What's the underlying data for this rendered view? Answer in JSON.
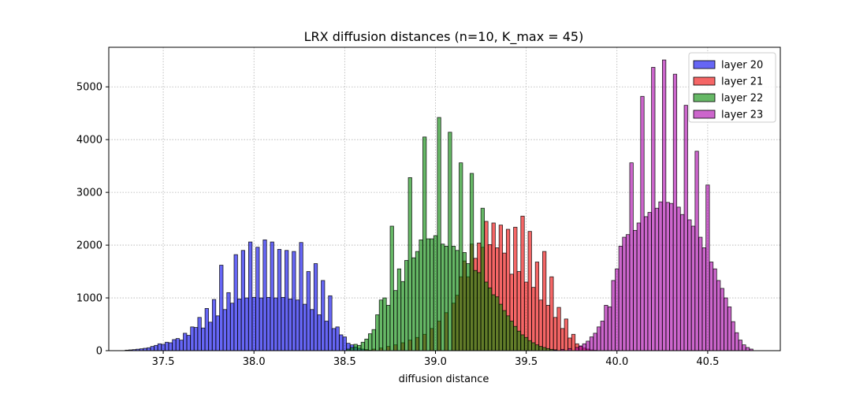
{
  "chart_data": {
    "type": "histogram",
    "title": "LRX diffusion distances (n=10, K_max = 45)",
    "xlabel": "diffusion distance",
    "ylabel": "",
    "xlim": [
      37.2,
      40.9
    ],
    "ylim": [
      0,
      5750
    ],
    "xticks": [
      37.5,
      38.0,
      38.5,
      39.0,
      39.5,
      40.0,
      40.5
    ],
    "xtick_labels": [
      "37.5",
      "38.0",
      "38.5",
      "39.0",
      "39.5",
      "40.0",
      "40.5"
    ],
    "yticks": [
      0,
      1000,
      2000,
      3000,
      4000,
      5000
    ],
    "ytick_labels": [
      "0",
      "1000",
      "2000",
      "3000",
      "4000",
      "5000"
    ],
    "grid": true,
    "legend_position": "top-right",
    "bin_width": 0.0192,
    "series": [
      {
        "name": "layer 20",
        "label": "layer 20",
        "color": "#0000ee",
        "alpha": 0.6,
        "bins": [
          [
            37.3,
            10
          ],
          [
            37.32,
            15
          ],
          [
            37.34,
            20
          ],
          [
            37.36,
            28
          ],
          [
            37.38,
            35
          ],
          [
            37.4,
            45
          ],
          [
            37.42,
            55
          ],
          [
            37.44,
            80
          ],
          [
            37.46,
            100
          ],
          [
            37.48,
            130
          ],
          [
            37.5,
            120
          ],
          [
            37.52,
            160
          ],
          [
            37.54,
            150
          ],
          [
            37.56,
            210
          ],
          [
            37.58,
            230
          ],
          [
            37.6,
            200
          ],
          [
            37.62,
            330
          ],
          [
            37.64,
            290
          ],
          [
            37.66,
            450
          ],
          [
            37.68,
            440
          ],
          [
            37.7,
            630
          ],
          [
            37.72,
            430
          ],
          [
            37.74,
            800
          ],
          [
            37.76,
            540
          ],
          [
            37.78,
            970
          ],
          [
            37.8,
            660
          ],
          [
            37.82,
            1620
          ],
          [
            37.84,
            780
          ],
          [
            37.86,
            1100
          ],
          [
            37.88,
            900
          ],
          [
            37.9,
            1820
          ],
          [
            37.92,
            980
          ],
          [
            37.94,
            1900
          ],
          [
            37.96,
            1000
          ],
          [
            37.98,
            2060
          ],
          [
            38.0,
            1010
          ],
          [
            38.02,
            1960
          ],
          [
            38.04,
            1000
          ],
          [
            38.06,
            2100
          ],
          [
            38.08,
            1010
          ],
          [
            38.1,
            2060
          ],
          [
            38.12,
            1000
          ],
          [
            38.14,
            1920
          ],
          [
            38.16,
            1010
          ],
          [
            38.18,
            1900
          ],
          [
            38.2,
            980
          ],
          [
            38.22,
            1880
          ],
          [
            38.24,
            960
          ],
          [
            38.26,
            2050
          ],
          [
            38.28,
            880
          ],
          [
            38.3,
            1500
          ],
          [
            38.32,
            780
          ],
          [
            38.34,
            1650
          ],
          [
            38.36,
            680
          ],
          [
            38.38,
            1330
          ],
          [
            38.4,
            560
          ],
          [
            38.42,
            1040
          ],
          [
            38.44,
            420
          ],
          [
            38.46,
            450
          ],
          [
            38.48,
            300
          ],
          [
            38.5,
            260
          ],
          [
            38.52,
            140
          ],
          [
            38.54,
            110
          ],
          [
            38.56,
            70
          ],
          [
            38.58,
            45
          ],
          [
            38.6,
            30
          ],
          [
            38.62,
            15
          ],
          [
            38.64,
            8
          ]
        ]
      },
      {
        "name": "layer 21",
        "label": "layer 21",
        "color": "#ee0000",
        "alpha": 0.6,
        "bins": [
          [
            38.62,
            20
          ],
          [
            38.66,
            30
          ],
          [
            38.7,
            50
          ],
          [
            38.74,
            80
          ],
          [
            38.78,
            110
          ],
          [
            38.82,
            150
          ],
          [
            38.86,
            200
          ],
          [
            38.9,
            250
          ],
          [
            38.94,
            310
          ],
          [
            38.98,
            420
          ],
          [
            39.02,
            560
          ],
          [
            39.06,
            720
          ],
          [
            39.1,
            900
          ],
          [
            39.12,
            1050
          ],
          [
            39.14,
            1400
          ],
          [
            39.16,
            1700
          ],
          [
            39.18,
            1400
          ],
          [
            39.2,
            2020
          ],
          [
            39.22,
            1750
          ],
          [
            39.24,
            2040
          ],
          [
            39.26,
            1960
          ],
          [
            39.28,
            2450
          ],
          [
            39.3,
            2010
          ],
          [
            39.32,
            2420
          ],
          [
            39.34,
            1950
          ],
          [
            39.36,
            2380
          ],
          [
            39.38,
            1850
          ],
          [
            39.4,
            2300
          ],
          [
            39.42,
            1450
          ],
          [
            39.44,
            2340
          ],
          [
            39.46,
            1500
          ],
          [
            39.48,
            2550
          ],
          [
            39.5,
            1300
          ],
          [
            39.52,
            2260
          ],
          [
            39.54,
            1200
          ],
          [
            39.56,
            1680
          ],
          [
            39.58,
            960
          ],
          [
            39.6,
            1880
          ],
          [
            39.62,
            860
          ],
          [
            39.64,
            1400
          ],
          [
            39.66,
            630
          ],
          [
            39.68,
            820
          ],
          [
            39.7,
            420
          ],
          [
            39.72,
            600
          ],
          [
            39.74,
            240
          ],
          [
            39.76,
            310
          ],
          [
            39.78,
            130
          ],
          [
            39.8,
            80
          ],
          [
            39.82,
            50
          ],
          [
            39.84,
            30
          ],
          [
            39.86,
            15
          ],
          [
            39.88,
            8
          ]
        ]
      },
      {
        "name": "layer 22",
        "label": "layer 22",
        "color": "#008800",
        "alpha": 0.6,
        "bins": [
          [
            38.52,
            30
          ],
          [
            38.54,
            60
          ],
          [
            38.56,
            120
          ],
          [
            38.58,
            100
          ],
          [
            38.6,
            160
          ],
          [
            38.62,
            220
          ],
          [
            38.64,
            320
          ],
          [
            38.66,
            400
          ],
          [
            38.68,
            680
          ],
          [
            38.7,
            960
          ],
          [
            38.72,
            1000
          ],
          [
            38.74,
            860
          ],
          [
            38.76,
            2360
          ],
          [
            38.78,
            1140
          ],
          [
            38.8,
            1550
          ],
          [
            38.82,
            1310
          ],
          [
            38.84,
            1710
          ],
          [
            38.86,
            3280
          ],
          [
            38.88,
            1760
          ],
          [
            38.9,
            1880
          ],
          [
            38.92,
            2100
          ],
          [
            38.94,
            4050
          ],
          [
            38.96,
            2120
          ],
          [
            38.98,
            2120
          ],
          [
            39.0,
            2180
          ],
          [
            39.02,
            4420
          ],
          [
            39.04,
            2020
          ],
          [
            39.06,
            1980
          ],
          [
            39.08,
            4140
          ],
          [
            39.1,
            1980
          ],
          [
            39.12,
            1900
          ],
          [
            39.14,
            3560
          ],
          [
            39.16,
            1860
          ],
          [
            39.18,
            1650
          ],
          [
            39.2,
            3360
          ],
          [
            39.22,
            1520
          ],
          [
            39.24,
            1480
          ],
          [
            39.26,
            2700
          ],
          [
            39.28,
            1300
          ],
          [
            39.3,
            1190
          ],
          [
            39.32,
            1060
          ],
          [
            39.34,
            1020
          ],
          [
            39.36,
            880
          ],
          [
            39.38,
            760
          ],
          [
            39.4,
            660
          ],
          [
            39.42,
            560
          ],
          [
            39.44,
            460
          ],
          [
            39.46,
            370
          ],
          [
            39.48,
            300
          ],
          [
            39.5,
            250
          ],
          [
            39.52,
            190
          ],
          [
            39.54,
            150
          ],
          [
            39.56,
            110
          ],
          [
            39.58,
            80
          ],
          [
            39.6,
            60
          ],
          [
            39.62,
            40
          ],
          [
            39.64,
            25
          ],
          [
            39.66,
            15
          ]
        ]
      },
      {
        "name": "layer 23",
        "label": "layer 23",
        "color": "#aa00aa",
        "alpha": 0.6,
        "bins": [
          [
            39.66,
            15
          ],
          [
            39.7,
            25
          ],
          [
            39.74,
            40
          ],
          [
            39.78,
            60
          ],
          [
            39.8,
            90
          ],
          [
            39.82,
            130
          ],
          [
            39.84,
            180
          ],
          [
            39.86,
            260
          ],
          [
            39.88,
            330
          ],
          [
            39.9,
            450
          ],
          [
            39.92,
            560
          ],
          [
            39.94,
            860
          ],
          [
            39.96,
            830
          ],
          [
            39.98,
            1330
          ],
          [
            40.0,
            1550
          ],
          [
            40.02,
            1980
          ],
          [
            40.04,
            2150
          ],
          [
            40.06,
            2200
          ],
          [
            40.08,
            3560
          ],
          [
            40.1,
            2280
          ],
          [
            40.12,
            2420
          ],
          [
            40.14,
            4820
          ],
          [
            40.16,
            2540
          ],
          [
            40.18,
            2620
          ],
          [
            40.2,
            5370
          ],
          [
            40.22,
            2700
          ],
          [
            40.24,
            2820
          ],
          [
            40.26,
            5510
          ],
          [
            40.28,
            2810
          ],
          [
            40.3,
            2790
          ],
          [
            40.32,
            5240
          ],
          [
            40.34,
            2720
          ],
          [
            40.36,
            2580
          ],
          [
            40.38,
            4650
          ],
          [
            40.4,
            2480
          ],
          [
            40.42,
            2360
          ],
          [
            40.44,
            3780
          ],
          [
            40.46,
            2150
          ],
          [
            40.48,
            1950
          ],
          [
            40.5,
            3140
          ],
          [
            40.52,
            1680
          ],
          [
            40.54,
            1550
          ],
          [
            40.56,
            1330
          ],
          [
            40.58,
            1180
          ],
          [
            40.6,
            1000
          ],
          [
            40.62,
            830
          ],
          [
            40.64,
            550
          ],
          [
            40.66,
            340
          ],
          [
            40.68,
            200
          ],
          [
            40.7,
            110
          ],
          [
            40.72,
            60
          ],
          [
            40.74,
            30
          ]
        ]
      }
    ]
  }
}
